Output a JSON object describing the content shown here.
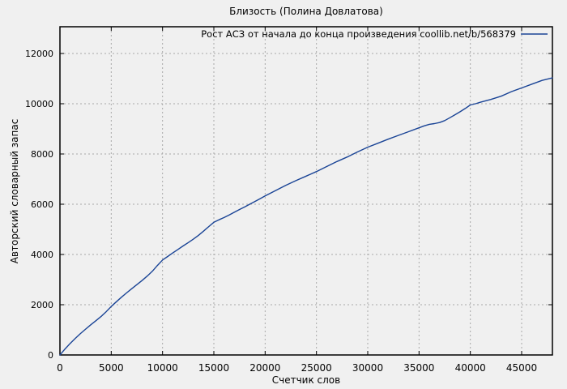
{
  "chart_data": {
    "type": "line",
    "title": "Близость (Полина Довлатова)",
    "xlabel": "Счетчик слов",
    "ylabel": "Авторский словарный запас",
    "xlim": [
      0,
      48000
    ],
    "ylim": [
      0,
      13064
    ],
    "xticks": [
      0,
      5000,
      10000,
      15000,
      20000,
      25000,
      30000,
      35000,
      40000,
      45000
    ],
    "yticks": [
      0,
      2000,
      4000,
      6000,
      8000,
      10000,
      12000
    ],
    "grid": true,
    "legend_position": "top-right-inside",
    "background_color": "#f0f0f0",
    "grid_color": "#a8a8a8",
    "axis_color": "#000000",
    "series": [
      {
        "name": "Рост АСЗ от начала до конца произведения coollib.net/b/568379",
        "color": "#1a4496",
        "points": [
          [
            0,
            0
          ],
          [
            500,
            240
          ],
          [
            1000,
            460
          ],
          [
            1500,
            660
          ],
          [
            2000,
            850
          ],
          [
            2500,
            1030
          ],
          [
            3000,
            1200
          ],
          [
            3500,
            1360
          ],
          [
            4000,
            1530
          ],
          [
            4500,
            1720
          ],
          [
            5000,
            1930
          ],
          [
            5500,
            2120
          ],
          [
            6000,
            2300
          ],
          [
            6500,
            2470
          ],
          [
            7000,
            2640
          ],
          [
            7500,
            2800
          ],
          [
            8000,
            2960
          ],
          [
            8500,
            3140
          ],
          [
            9000,
            3330
          ],
          [
            9500,
            3560
          ],
          [
            10000,
            3780
          ],
          [
            10500,
            3920
          ],
          [
            11000,
            4060
          ],
          [
            11500,
            4200
          ],
          [
            12000,
            4340
          ],
          [
            12500,
            4470
          ],
          [
            13000,
            4610
          ],
          [
            13500,
            4760
          ],
          [
            14000,
            4930
          ],
          [
            14500,
            5110
          ],
          [
            15000,
            5280
          ],
          [
            15500,
            5380
          ],
          [
            16000,
            5470
          ],
          [
            16500,
            5570
          ],
          [
            17000,
            5680
          ],
          [
            17500,
            5790
          ],
          [
            18000,
            5890
          ],
          [
            18500,
            6000
          ],
          [
            19000,
            6110
          ],
          [
            19500,
            6220
          ],
          [
            20000,
            6330
          ],
          [
            21000,
            6540
          ],
          [
            22000,
            6750
          ],
          [
            23000,
            6940
          ],
          [
            24000,
            7120
          ],
          [
            25000,
            7300
          ],
          [
            26000,
            7500
          ],
          [
            27000,
            7700
          ],
          [
            28000,
            7880
          ],
          [
            29000,
            8080
          ],
          [
            30000,
            8270
          ],
          [
            31000,
            8430
          ],
          [
            32000,
            8590
          ],
          [
            33000,
            8740
          ],
          [
            34000,
            8890
          ],
          [
            35000,
            9040
          ],
          [
            35500,
            9120
          ],
          [
            36000,
            9180
          ],
          [
            36500,
            9210
          ],
          [
            37000,
            9250
          ],
          [
            37500,
            9330
          ],
          [
            38000,
            9440
          ],
          [
            38500,
            9560
          ],
          [
            39000,
            9680
          ],
          [
            39500,
            9810
          ],
          [
            40000,
            9950
          ],
          [
            40500,
            10000
          ],
          [
            41000,
            10060
          ],
          [
            42000,
            10170
          ],
          [
            43000,
            10300
          ],
          [
            44000,
            10480
          ],
          [
            45000,
            10630
          ],
          [
            46000,
            10780
          ],
          [
            47000,
            10930
          ],
          [
            48000,
            11030
          ]
        ]
      }
    ]
  }
}
